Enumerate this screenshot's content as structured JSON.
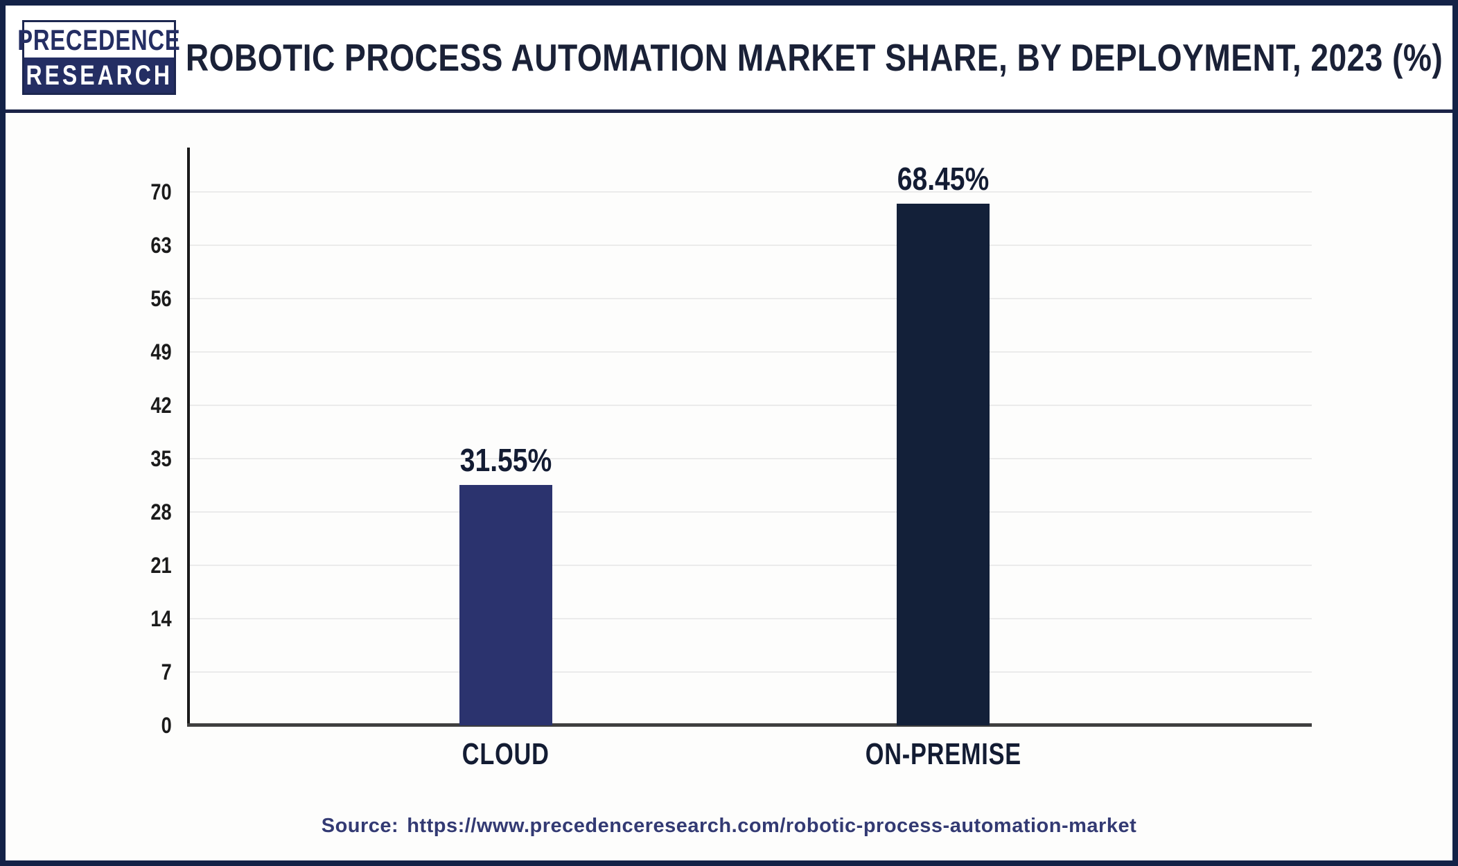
{
  "header": {
    "logo": {
      "line1": "PRECEDENCE",
      "line2": "RESEARCH"
    },
    "title": "ROBOTIC PROCESS AUTOMATION MARKET SHARE, BY DEPLOYMENT, 2023 (%)"
  },
  "chart_data": {
    "type": "bar",
    "title": "Robotic Process Automation Market Share, By Deployment, 2023 (%)",
    "categories": [
      "CLOUD",
      "ON-PREMISE"
    ],
    "values": [
      31.55,
      68.45
    ],
    "value_labels": [
      "31.55%",
      "68.45%"
    ],
    "xlabel": "",
    "ylabel": "",
    "ylim": [
      0,
      70
    ],
    "yticks": [
      0,
      7,
      14,
      21,
      28,
      35,
      42,
      49,
      56,
      63,
      70
    ],
    "grid": "horizontal-major",
    "legend": "none",
    "bar_colors": [
      "#2b336e",
      "#132039"
    ]
  },
  "footer": {
    "source_prefix": "Source:",
    "source_url": "https://www.precedenceresearch.com/robotic-process-automation-market"
  },
  "colors": {
    "frame_navy": "#132247",
    "separator_navy": "#1b2347",
    "title_navy": "#1a2137",
    "logo_band_navy": "#242e63",
    "cloud_bar": "#2b336e",
    "on_premise_bar": "#132039",
    "gridline_gray": "#ebebeb",
    "y_axis_black": "#1a1a1a",
    "x_axis_gray": "#3f3f3f",
    "tick_black": "#1b1b1b",
    "source_navy": "#333a73"
  }
}
